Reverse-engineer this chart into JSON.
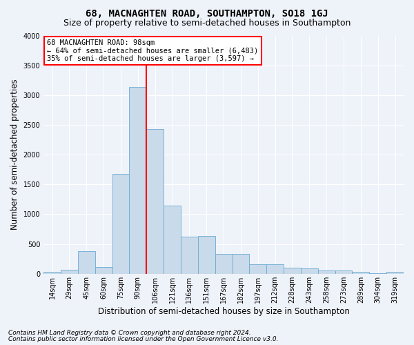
{
  "title": "68, MACNAGHTEN ROAD, SOUTHAMPTON, SO18 1GJ",
  "subtitle": "Size of property relative to semi-detached houses in Southampton",
  "xlabel": "Distribution of semi-detached houses by size in Southampton",
  "ylabel": "Number of semi-detached properties",
  "footnote1": "Contains HM Land Registry data © Crown copyright and database right 2024.",
  "footnote2": "Contains public sector information licensed under the Open Government Licence v3.0.",
  "annotation_title": "68 MACNAGHTEN ROAD: 98sqm",
  "annotation_line1": "← 64% of semi-detached houses are smaller (6,483)",
  "annotation_line2": "35% of semi-detached houses are larger (3,597) →",
  "bar_color": "#c9daea",
  "bar_edge_color": "#6aaad4",
  "background_color": "#eef2f9",
  "grid_color": "#ffffff",
  "redline_bin": 5.5,
  "categories": [
    "14sqm",
    "29sqm",
    "45sqm",
    "60sqm",
    "75sqm",
    "90sqm",
    "106sqm",
    "121sqm",
    "136sqm",
    "151sqm",
    "167sqm",
    "182sqm",
    "197sqm",
    "212sqm",
    "228sqm",
    "243sqm",
    "258sqm",
    "273sqm",
    "289sqm",
    "304sqm",
    "319sqm"
  ],
  "values": [
    30,
    70,
    380,
    110,
    1680,
    3140,
    2430,
    1140,
    620,
    630,
    330,
    330,
    160,
    155,
    100,
    95,
    60,
    55,
    30,
    5,
    30
  ],
  "ylim": [
    0,
    4000
  ],
  "yticks": [
    0,
    500,
    1000,
    1500,
    2000,
    2500,
    3000,
    3500,
    4000
  ],
  "title_fontsize": 10,
  "subtitle_fontsize": 9,
  "axis_label_fontsize": 8.5,
  "tick_fontsize": 7,
  "annotation_fontsize": 7.5,
  "footnote_fontsize": 6.5
}
